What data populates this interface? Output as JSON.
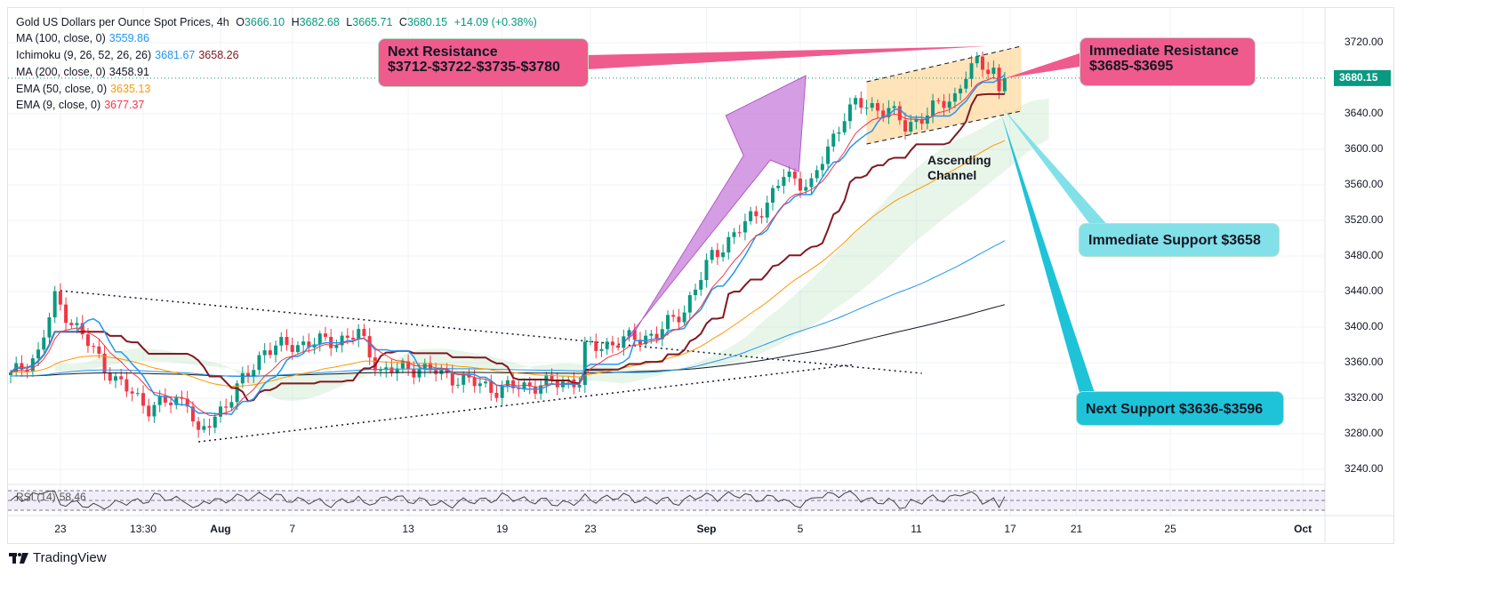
{
  "header": {
    "symbol": "Gold US Dollars per Ounce Spot Prices, 4h",
    "o_label": "O",
    "open": "3666.10",
    "h_label": "H",
    "high": "3682.68",
    "l_label": "L",
    "low": "3665.71",
    "c_label": "C",
    "close": "3680.15",
    "change": "+14.09 (+0.38%)"
  },
  "indicators": [
    {
      "name": "MA (100, close, 0)",
      "value": "3559.86",
      "color": "#2196f3"
    },
    {
      "name": "Ichimoku (9, 26, 52, 26, 26)",
      "value": "3681.67",
      "value2": "3658.26",
      "color": "#2196f3",
      "color2": "#801922"
    },
    {
      "name": "MA (200, close, 0)",
      "value": "3458.91",
      "color": "#131722"
    },
    {
      "name": "EMA (50, close, 0)",
      "value": "3635.13",
      "color": "#ff9800"
    },
    {
      "name": "EMA (9, close, 0)",
      "value": "3677.37",
      "color": "#f23645"
    }
  ],
  "annotations": {
    "next_resistance_title": "Next Resistance",
    "next_resistance_levels": "$3712-$3722-$3735-$3780",
    "immediate_resistance_title": "Immediate Resistance",
    "immediate_resistance_levels": "$3685-$3695",
    "immediate_support": "Immediate Support $3658",
    "next_support": "Next Support $3636-$3596",
    "channel_label_1": "Ascending",
    "channel_label_2": "Channel"
  },
  "rsi": {
    "label": "RSI (14)",
    "value": "58.46"
  },
  "branding": {
    "logo_text": "TradingView"
  },
  "colors": {
    "up": "#089981",
    "down": "#f23645",
    "last_price": "#089981",
    "pink": "#ef5b8d",
    "cyan": "#1ec3d8",
    "light_cyan": "#82e0e9"
  },
  "chart_data": {
    "type": "candlestick",
    "title": "Gold US Dollars per Ounce Spot Prices, 4h",
    "ylim": [
      3220,
      3740
    ],
    "y_ticks": [
      "3720.00",
      "3640.00",
      "3600.00",
      "3560.00",
      "3520.00",
      "3480.00",
      "3440.00",
      "3400.00",
      "3360.00",
      "3320.00",
      "3280.00",
      "3240.00"
    ],
    "y_tick_values": [
      3720,
      3640,
      3600,
      3560,
      3520,
      3480,
      3440,
      3400,
      3360,
      3320,
      3280,
      3240
    ],
    "last_price": 3680.15,
    "last_price_label": "3680.15",
    "x_ticks": [
      {
        "label": "23",
        "index": 9,
        "bold": false
      },
      {
        "label": "13:30",
        "index": 24,
        "bold": false
      },
      {
        "label": "Aug",
        "index": 38,
        "bold": true
      },
      {
        "label": "7",
        "index": 51,
        "bold": false
      },
      {
        "label": "13",
        "index": 72,
        "bold": false
      },
      {
        "label": "19",
        "index": 89,
        "bold": false
      },
      {
        "label": "23",
        "index": 105,
        "bold": false
      },
      {
        "label": "Sep",
        "index": 126,
        "bold": true
      },
      {
        "label": "5",
        "index": 143,
        "bold": false
      },
      {
        "label": "11",
        "index": 164,
        "bold": false
      },
      {
        "label": "17",
        "index": 181,
        "bold": false
      },
      {
        "label": "21",
        "index": 193,
        "bold": false
      },
      {
        "label": "25",
        "index": 210,
        "bold": false
      },
      {
        "label": "Oct",
        "index": 234,
        "bold": true
      }
    ],
    "close_path": [
      [
        0,
        3345
      ],
      [
        5,
        3370
      ],
      [
        8,
        3432
      ],
      [
        13,
        3390
      ],
      [
        19,
        3340
      ],
      [
        25,
        3310
      ],
      [
        32,
        3320
      ],
      [
        34,
        3275
      ],
      [
        37,
        3300
      ],
      [
        41,
        3330
      ],
      [
        46,
        3375
      ],
      [
        51,
        3380
      ],
      [
        59,
        3385
      ],
      [
        63,
        3392
      ],
      [
        67,
        3350
      ],
      [
        74,
        3355
      ],
      [
        82,
        3340
      ],
      [
        88,
        3330
      ],
      [
        95,
        3335
      ],
      [
        103,
        3340
      ],
      [
        104,
        3375
      ],
      [
        111,
        3385
      ],
      [
        117,
        3392
      ],
      [
        122,
        3420
      ],
      [
        127,
        3480
      ],
      [
        132,
        3510
      ],
      [
        137,
        3540
      ],
      [
        140,
        3570
      ],
      [
        145,
        3560
      ],
      [
        148,
        3600
      ],
      [
        151,
        3640
      ],
      [
        153,
        3650
      ],
      [
        159,
        3645
      ],
      [
        162,
        3625
      ],
      [
        167,
        3645
      ],
      [
        171,
        3660
      ],
      [
        173,
        3685
      ],
      [
        175,
        3695
      ],
      [
        178,
        3690
      ],
      [
        179,
        3665
      ],
      [
        180,
        3680
      ]
    ],
    "triangle_upper": [
      [
        9,
        3441
      ],
      [
        165,
        3348
      ]
    ],
    "triangle_lower": [
      [
        34,
        3271
      ],
      [
        153,
        3358
      ]
    ],
    "channel": {
      "start_index": 155,
      "end_index": 183,
      "upper": [
        3676,
        3716
      ],
      "lower": [
        3606,
        3643
      ]
    },
    "breakout_arrow": [
      [
        111,
        3383
      ],
      [
        144,
        3683
      ]
    ]
  }
}
